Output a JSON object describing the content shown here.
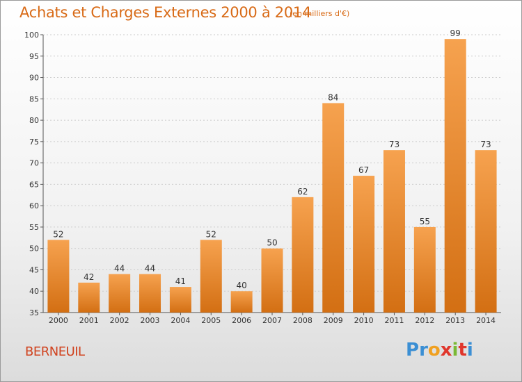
{
  "header": {
    "title": "Achats et Charges Externes 2000 à 2014",
    "subtitle": "(en milliers d'€)"
  },
  "footer": {
    "commune": "BERNEUIL",
    "logo": {
      "letters": [
        "P",
        "r",
        "o",
        "x",
        "i",
        "t",
        "i"
      ],
      "colors": [
        "#3b8fd4",
        "#3b8fd4",
        "#f0a020",
        "#e0362c",
        "#7ab935",
        "#e0362c",
        "#3b8fd4"
      ]
    }
  },
  "colors": {
    "title": "#d86a16",
    "bar_top": "#f6a24f",
    "bar_bottom": "#d36f13",
    "commune": "#d0421e",
    "grid": "#cccccc"
  },
  "chart_data": {
    "type": "bar",
    "title": "Achats et Charges Externes 2000 à 2014",
    "subtitle": "(en milliers d'€)",
    "xlabel": "",
    "ylabel": "",
    "categories": [
      "2000",
      "2001",
      "2002",
      "2003",
      "2004",
      "2005",
      "2006",
      "2007",
      "2008",
      "2009",
      "2010",
      "2011",
      "2012",
      "2013",
      "2014"
    ],
    "values": [
      52,
      42,
      44,
      44,
      41,
      52,
      40,
      50,
      62,
      84,
      67,
      73,
      55,
      99,
      73
    ],
    "ylim": [
      35,
      100
    ],
    "yticks": [
      "35",
      "40",
      "45",
      "50",
      "55",
      "60",
      "65",
      "70",
      "75",
      "80",
      "85",
      "90",
      "95",
      "100"
    ],
    "grid": true,
    "legend": "none"
  }
}
